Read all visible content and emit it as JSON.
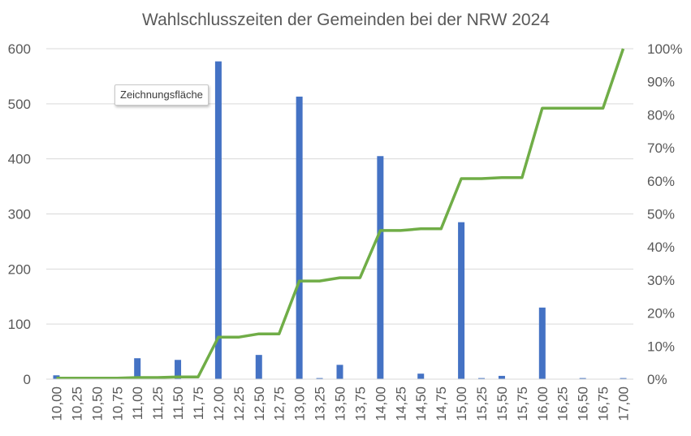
{
  "chart_data": {
    "type": "bar",
    "title": "Wahlschlusszeiten der Gemeinden bei der NRW 2024",
    "categories": [
      "10,00",
      "10,25",
      "10,50",
      "10,75",
      "11,00",
      "11,25",
      "11,50",
      "11,75",
      "12,00",
      "12,25",
      "12,50",
      "12,75",
      "13,00",
      "13,25",
      "13,50",
      "13,75",
      "14,00",
      "14,25",
      "14,50",
      "14,75",
      "15,00",
      "15,25",
      "15,50",
      "15,75",
      "16,00",
      "16,25",
      "16,50",
      "16,75",
      "17,00"
    ],
    "series": [
      {
        "type": "bar",
        "axis": "left",
        "color": "#4472c4",
        "values": [
          7,
          0,
          4,
          0,
          38,
          0,
          35,
          0,
          577,
          0,
          44,
          0,
          513,
          2,
          26,
          0,
          405,
          0,
          10,
          0,
          285,
          2,
          6,
          0,
          130,
          0,
          2,
          0,
          2
        ]
      },
      {
        "type": "line",
        "axis": "right",
        "color": "#70ad47",
        "values": [
          0.003,
          0.003,
          0.003,
          0.003,
          0.005,
          0.005,
          0.007,
          0.007,
          0.127,
          0.127,
          0.137,
          0.137,
          0.297,
          0.297,
          0.307,
          0.307,
          0.45,
          0.45,
          0.455,
          0.455,
          0.607,
          0.607,
          0.61,
          0.61,
          0.82,
          0.82,
          0.82,
          0.82,
          1.0
        ]
      }
    ],
    "y_left": {
      "ylim": [
        0,
        600
      ],
      "ticks": [
        "0",
        "100",
        "200",
        "300",
        "400",
        "500",
        "600"
      ]
    },
    "y_right": {
      "ylim": [
        0,
        1
      ],
      "ticks": [
        "0%",
        "10%",
        "20%",
        "30%",
        "40%",
        "50%",
        "60%",
        "70%",
        "80%",
        "90%",
        "100%"
      ]
    },
    "grid": true,
    "legend": "none"
  },
  "tooltip": {
    "text": "Zeichnungsfläche"
  }
}
